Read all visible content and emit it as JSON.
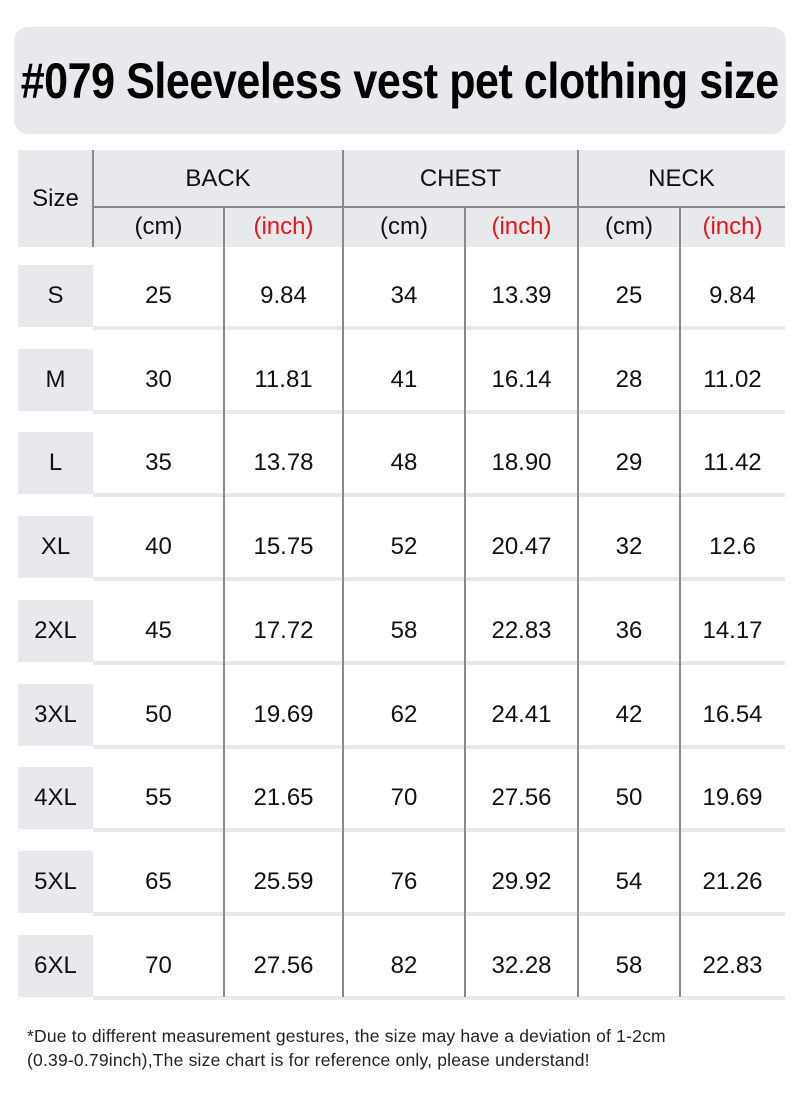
{
  "title": "#079  Sleeveless vest pet clothing size",
  "header": {
    "size": "Size",
    "groups": [
      "BACK",
      "CHEST",
      "NECK"
    ],
    "units": [
      "(cm)",
      "(inch)",
      "(cm)",
      "(inch)",
      "(cm)",
      "(inch)"
    ]
  },
  "colors": {
    "inch": "#e8141b",
    "header_bg": "#e8e9ec"
  },
  "rows": [
    {
      "size": "S",
      "values": [
        "25",
        "9.84",
        "34",
        "13.39",
        "25",
        "9.84"
      ]
    },
    {
      "size": "M",
      "values": [
        "30",
        "11.81",
        "41",
        "16.14",
        "28",
        "11.02"
      ]
    },
    {
      "size": "L",
      "values": [
        "35",
        "13.78",
        "48",
        "18.90",
        "29",
        "11.42"
      ]
    },
    {
      "size": "XL",
      "values": [
        "40",
        "15.75",
        "52",
        "20.47",
        "32",
        "12.6"
      ]
    },
    {
      "size": "2XL",
      "values": [
        "45",
        "17.72",
        "58",
        "22.83",
        "36",
        "14.17"
      ]
    },
    {
      "size": "3XL",
      "values": [
        "50",
        "19.69",
        "62",
        "24.41",
        "42",
        "16.54"
      ]
    },
    {
      "size": "4XL",
      "values": [
        "55",
        "21.65",
        "70",
        "27.56",
        "50",
        "19.69"
      ]
    },
    {
      "size": "5XL",
      "values": [
        "65",
        "25.59",
        "76",
        "29.92",
        "54",
        "21.26"
      ]
    },
    {
      "size": "6XL",
      "values": [
        "70",
        "27.56",
        "82",
        "32.28",
        "58",
        "22.83"
      ]
    }
  ],
  "note": [
    "*Due to different measurement gestures, the size may have a deviation of 1-2cm",
    "(0.39-0.79inch),The size chart is for reference only, please understand!"
  ]
}
